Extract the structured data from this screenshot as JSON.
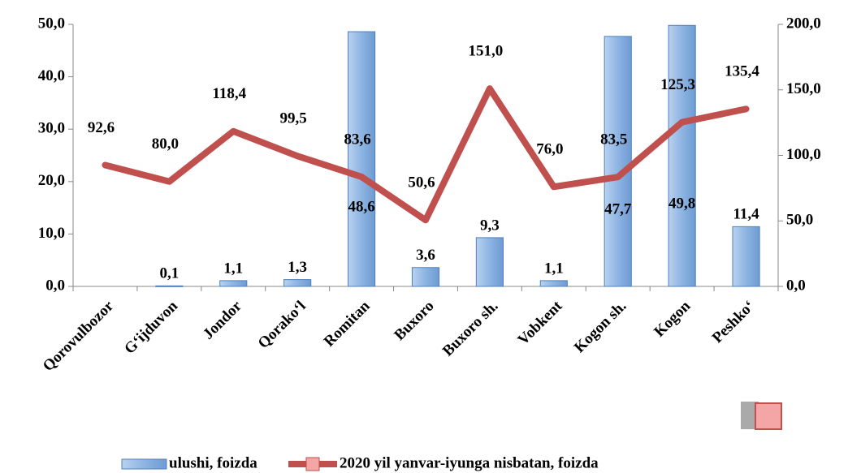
{
  "chart_data": {
    "type": "bar",
    "categories": [
      "Qorovulbozor",
      "G‘ijduvon",
      "Jondor",
      "Qorako‘l",
      "Romitan",
      "Buxoro",
      "Buxoro sh.",
      "Vobkent",
      "Kogon sh.",
      "Kogon",
      "Peshko‘"
    ],
    "series": [
      {
        "name": "ulushi, foizda",
        "type": "bar",
        "color": "#8db4e2",
        "values": [
          null,
          0.1,
          1.1,
          1.3,
          48.6,
          3.6,
          9.3,
          1.1,
          47.7,
          49.8,
          11.4
        ],
        "value_labels": [
          null,
          "0,1",
          "1,1",
          "1,3",
          "48,6",
          "3,6",
          "9,3",
          "1,1",
          "47,7",
          "49,8",
          "11,4"
        ]
      },
      {
        "name": "2020 yil yanvar-iyunga nisbatan, foizda",
        "type": "line",
        "axis": "y2",
        "color": "#c0504d",
        "values": [
          92.6,
          80.0,
          118.4,
          99.5,
          83.6,
          50.6,
          151.0,
          76.0,
          83.5,
          125.3,
          135.4
        ],
        "value_labels": [
          "92,6",
          "80,0",
          "118,4",
          "99,5",
          "83,6",
          "50,6",
          "151,0",
          "76,0",
          "83,5",
          "125,3",
          "135,4"
        ]
      }
    ],
    "ylim": [
      0,
      50
    ],
    "yticks": [
      {
        "value": 0,
        "label": "0,0"
      },
      {
        "value": 10,
        "label": "10,0"
      },
      {
        "value": 20,
        "label": "20,0"
      },
      {
        "value": 30,
        "label": "30,0"
      },
      {
        "value": 40,
        "label": "40,0"
      },
      {
        "value": 50,
        "label": "50,0"
      }
    ],
    "y2lim": [
      0,
      200
    ],
    "y2ticks": [
      {
        "value": 0,
        "label": "0,0"
      },
      {
        "value": 50,
        "label": "50,0"
      },
      {
        "value": 100,
        "label": "100,0"
      },
      {
        "value": 150,
        "label": "150,0"
      },
      {
        "value": 200,
        "label": "200,0"
      }
    ],
    "legend": "bottom"
  }
}
